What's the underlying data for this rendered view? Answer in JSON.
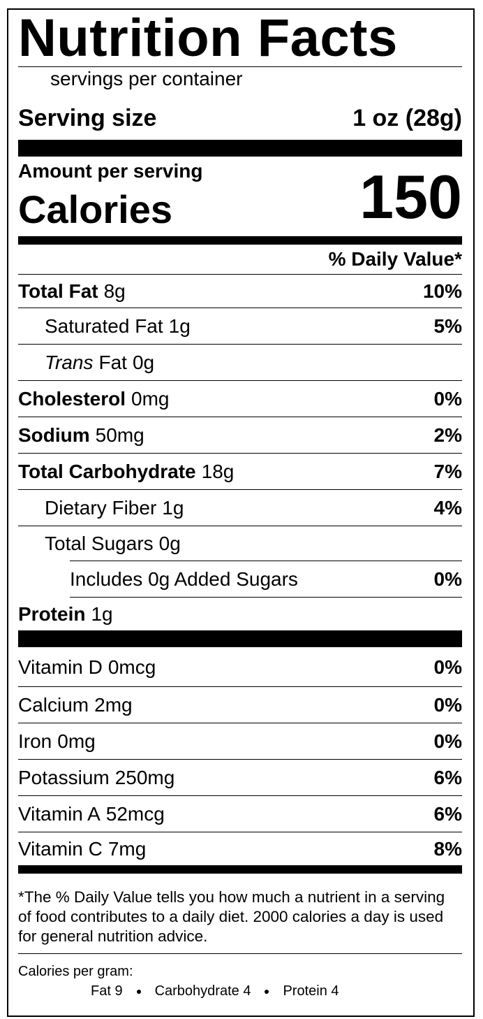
{
  "title": "Nutrition Facts",
  "servings": "servings per container",
  "serving_size": {
    "label": "Serving size",
    "value": "1 oz (28g)"
  },
  "amount_per_serving": "Amount per serving",
  "calories": {
    "label": "Calories",
    "value": "150"
  },
  "daily_value_header": "% Daily Value*",
  "nutrients": [
    {
      "name": "Total Fat",
      "amount": "8g",
      "dv": "10%"
    },
    {
      "name": "Saturated Fat",
      "amount": "1g",
      "dv": "5%"
    },
    {
      "name_italic": "Trans",
      "name": "Fat",
      "amount": "0g"
    },
    {
      "name": "Cholesterol",
      "amount": "0mg",
      "dv": "0%"
    },
    {
      "name": "Sodium",
      "amount": "50mg",
      "dv": "2%"
    },
    {
      "name": "Total Carbohydrate",
      "amount": "18g",
      "dv": "7%"
    },
    {
      "name": "Dietary Fiber",
      "amount": "1g",
      "dv": "4%"
    },
    {
      "name": "Total Sugars",
      "amount": "0g"
    },
    {
      "name": "Includes 0g Added Sugars",
      "dv": "0%"
    },
    {
      "name": "Protein",
      "amount": "1g"
    }
  ],
  "vitamins": [
    {
      "name": "Vitamin D",
      "amount": "0mcg",
      "dv": "0%"
    },
    {
      "name": "Calcium",
      "amount": "2mg",
      "dv": "0%"
    },
    {
      "name": "Iron",
      "amount": "0mg",
      "dv": "0%"
    },
    {
      "name": "Potassium",
      "amount": "250mg",
      "dv": "6%"
    },
    {
      "name": "Vitamin A",
      "amount": "52mcg",
      "dv": "6%"
    },
    {
      "name": "Vitamin C",
      "amount": "7mg",
      "dv": "8%"
    }
  ],
  "footnote": "*The % Daily Value tells you how much a nutrient in a serving of food contributes to a daily diet. 2000 calories a day is used for general nutrition advice.",
  "calories_per_gram": {
    "label": "Calories per gram:",
    "items": [
      "Fat 9",
      "Carbohydrate 4",
      "Protein 4"
    ]
  }
}
